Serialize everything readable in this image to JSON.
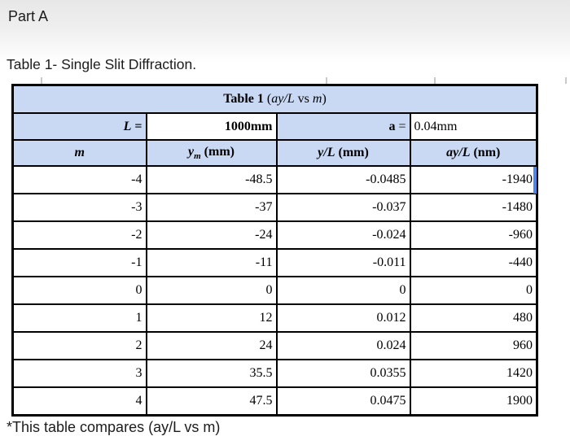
{
  "page": {
    "part_label": "Part A",
    "table_caption": "Table 1- Single Slit Diffraction.",
    "footnote": "*This table compares (ay/L vs m)"
  },
  "colors": {
    "header_fill": "#c9d9f3",
    "cell_cursor": "#4a86e8",
    "border": "#000000"
  },
  "table": {
    "title": {
      "bold": "Table 1",
      "open": " (",
      "var1": "ay/L",
      "vs": " vs ",
      "var2": "m",
      "close": ")"
    },
    "params": {
      "l_label_var": "L",
      "l_label_eq": " =",
      "l_value": "1000mm",
      "a_label_var": "a",
      "a_label_eq": " =",
      "a_value": "0.04mm"
    },
    "columns": [
      {
        "base": "m",
        "sub": "",
        "unit": ""
      },
      {
        "base": "y",
        "sub": "m",
        "unit": " (mm)"
      },
      {
        "base": "y/L",
        "sub": "",
        "unit": " (mm)"
      },
      {
        "base": "ay/L",
        "sub": "",
        "unit": " (nm)"
      }
    ],
    "rows": [
      [
        "-4",
        "-48.5",
        "-0.0485",
        "-1940"
      ],
      [
        "-3",
        "-37",
        "-0.037",
        "-1480"
      ],
      [
        "-2",
        "-24",
        "-0.024",
        "-960"
      ],
      [
        "-1",
        "-11",
        "-0.011",
        "-440"
      ],
      [
        "0",
        "0",
        "0",
        "0"
      ],
      [
        "1",
        "12",
        "0.012",
        "480"
      ],
      [
        "2",
        "24",
        "0.024",
        "960"
      ],
      [
        "3",
        "35.5",
        "0.0355",
        "1420"
      ],
      [
        "4",
        "47.5",
        "0.0475",
        "1900"
      ]
    ]
  }
}
